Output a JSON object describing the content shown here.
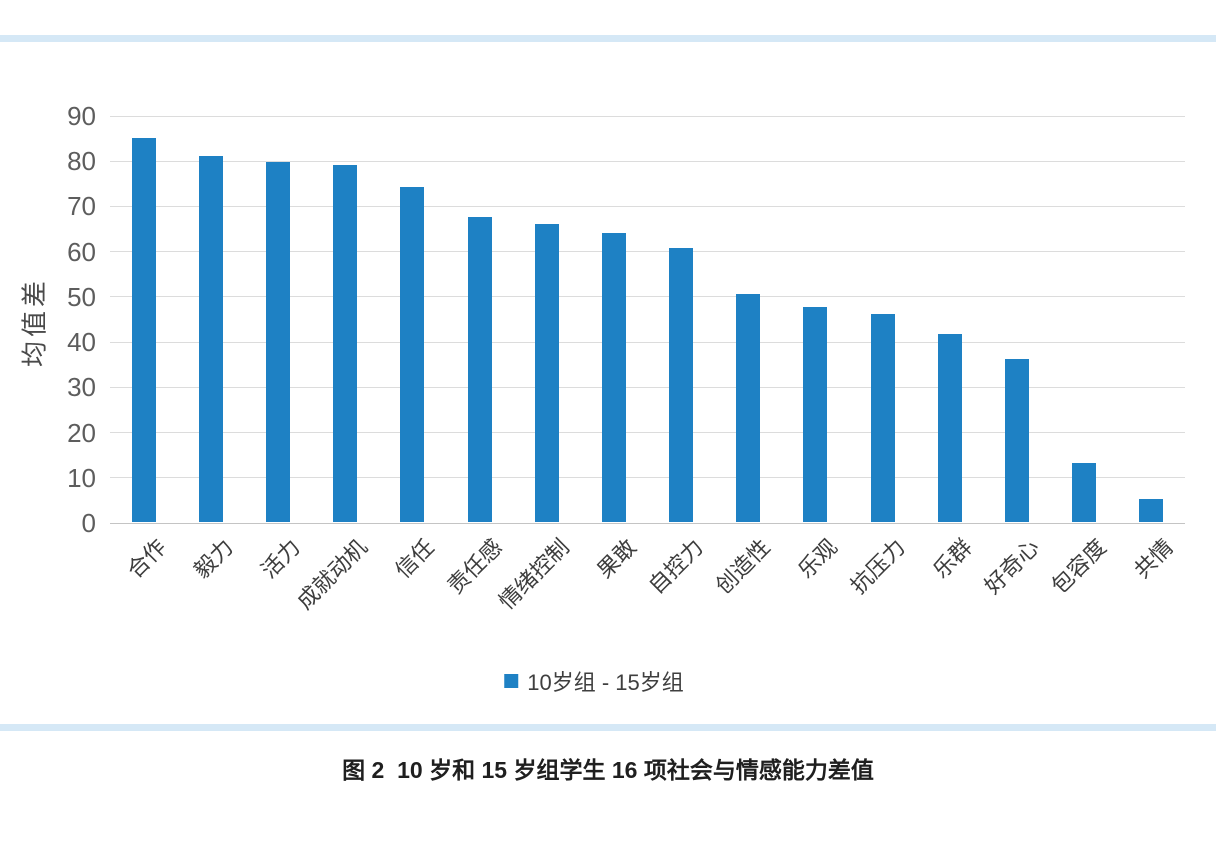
{
  "page": {
    "background": "#ffffff",
    "accent_strip_color": "#d5e8f6"
  },
  "chart_data": {
    "type": "bar",
    "title": "",
    "categories": [
      "合作",
      "毅力",
      "活力",
      "成就动机",
      "信任",
      "责任感",
      "情绪控制",
      "果敢",
      "自控力",
      "创造性",
      "乐观",
      "抗压力",
      "乐群",
      "好奇心",
      "包容度",
      "共情"
    ],
    "values": [
      85,
      81,
      79.5,
      79,
      74,
      67.5,
      66,
      64,
      60.5,
      50.5,
      47.5,
      46,
      41.5,
      36,
      13,
      5
    ],
    "series_name": "10岁组 - 15岁组",
    "xlabel": "",
    "ylabel": "均值差",
    "ylim": [
      0,
      90
    ],
    "y_ticks": [
      0,
      10,
      20,
      30,
      40,
      50,
      60,
      70,
      80,
      90
    ],
    "grid": true,
    "legend_position": "bottom",
    "bar_color": "#1e81c4"
  },
  "caption": {
    "text": "图 2  10 岁和 15 岁组学生 16 项社会与情感能力差值"
  }
}
